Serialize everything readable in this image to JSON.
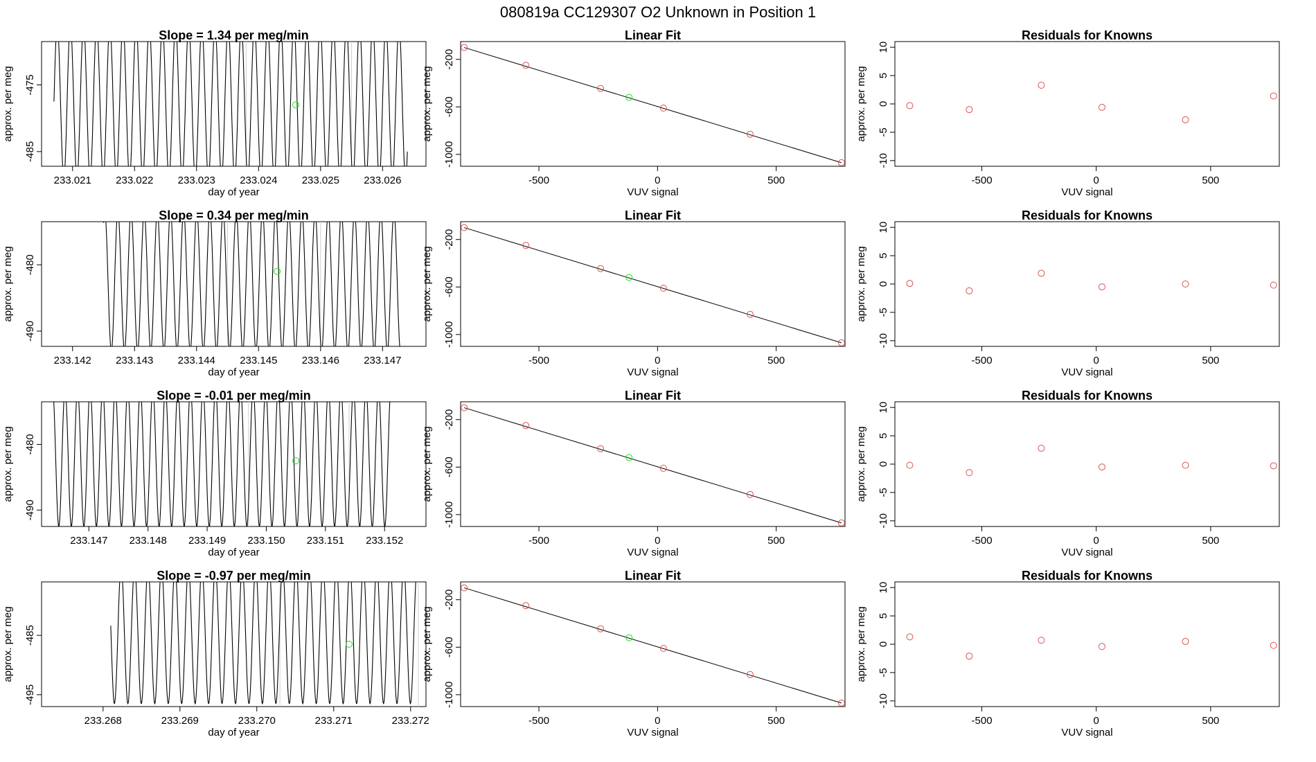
{
  "figure": {
    "title": "080819a      CC129307   O2 Unknown in Position  1"
  },
  "colors": {
    "standard_point": "#d9534f",
    "unknown_point": "#22dd22",
    "line": "#000000",
    "gridline": "#cfcfcf"
  },
  "rows": [
    {
      "slope": {
        "title": "Slope =  1.34  per meg/min",
        "type": "line",
        "xlabel": "day of year",
        "ylabel": "approx. per meg",
        "xlim": [
          233.0205,
          233.0267
        ],
        "ylim": [
          -487.2,
          -468.5
        ],
        "xticks": [
          "233.021",
          "233.022",
          "233.023",
          "233.024",
          "233.025",
          "233.026"
        ],
        "yticks": [
          "-475",
          "-485"
        ],
        "vlines": [
          233.0238,
          233.0255
        ],
        "series_start": 233.0207,
        "series_end": 233.0264,
        "mean": -477.5,
        "amplitude": 11.5,
        "period": 0.000212,
        "unknown_point": {
          "x": 233.0246,
          "y": -478.0
        }
      },
      "fit": {
        "title": "Linear Fit",
        "type": "scatter",
        "xlabel": "VUV signal",
        "ylabel": "approx. per meg",
        "xlim": [
          -830,
          790
        ],
        "ylim": [
          -1100,
          -50
        ],
        "xticks": [
          "-500",
          "0",
          "500"
        ],
        "yticks": [
          "-200",
          "-600",
          "-1000"
        ],
        "line": {
          "x": [
            -815,
            775
          ],
          "y": [
            -100,
            -1070
          ]
        },
        "knowns": {
          "x": [
            -815,
            -555,
            -240,
            25,
            390,
            775
          ],
          "y": [
            -100,
            -250,
            -445,
            -610,
            -830,
            -1070
          ]
        },
        "unknown": {
          "x": -120,
          "y": -520
        }
      },
      "residuals": {
        "title": "Residuals for Knowns",
        "type": "scatter",
        "xlabel": "VUV signal",
        "ylabel": "approx. per meg",
        "xlim": [
          -880,
          800
        ],
        "ylim": [
          -11,
          11
        ],
        "xticks": [
          "-500",
          "0",
          "500"
        ],
        "yticks": [
          "10",
          "5",
          "0",
          "-5",
          "-10"
        ],
        "points": {
          "x": [
            -815,
            -555,
            -240,
            25,
            390,
            775
          ],
          "y": [
            -0.3,
            -1.0,
            3.3,
            -0.6,
            -2.8,
            1.4
          ]
        }
      }
    },
    {
      "slope": {
        "title": "Slope =  0.34  per meg/min",
        "type": "line",
        "xlabel": "day of year",
        "ylabel": "approx. per meg",
        "xlim": [
          233.1415,
          233.1477
        ],
        "ylim": [
          -492.3,
          -473.5
        ],
        "xticks": [
          "233.142",
          "233.143",
          "233.144",
          "233.145",
          "233.146",
          "233.147"
        ],
        "yticks": [
          "-480",
          "-490"
        ],
        "vlines": [
          233.1445,
          233.146
        ],
        "series_start": 233.1425,
        "series_end": 233.1473,
        "mean": -482.5,
        "amplitude": 10.5,
        "period": 0.000212,
        "unknown_point": {
          "x": 233.1453,
          "y": -481.0
        }
      },
      "fit": {
        "title": "Linear Fit",
        "type": "scatter",
        "xlabel": "VUV signal",
        "ylabel": "approx. per meg",
        "xlim": [
          -830,
          790
        ],
        "ylim": [
          -1100,
          -50
        ],
        "xticks": [
          "-500",
          "0",
          "500"
        ],
        "yticks": [
          "-200",
          "-600",
          "-1000"
        ],
        "line": {
          "x": [
            -815,
            775
          ],
          "y": [
            -100,
            -1070
          ]
        },
        "knowns": {
          "x": [
            -815,
            -555,
            -240,
            25,
            390,
            775
          ],
          "y": [
            -100,
            -250,
            -445,
            -610,
            -830,
            -1070
          ]
        },
        "unknown": {
          "x": -120,
          "y": -520
        }
      },
      "residuals": {
        "title": "Residuals for Knowns",
        "type": "scatter",
        "xlabel": "VUV signal",
        "ylabel": "approx. per meg",
        "xlim": [
          -880,
          800
        ],
        "ylim": [
          -11,
          11
        ],
        "xticks": [
          "-500",
          "0",
          "500"
        ],
        "yticks": [
          "10",
          "5",
          "0",
          "-5",
          "-10"
        ],
        "points": {
          "x": [
            -815,
            -555,
            -240,
            25,
            390,
            775
          ],
          "y": [
            0.1,
            -1.2,
            1.9,
            -0.5,
            0.0,
            -0.2
          ]
        }
      }
    },
    {
      "slope": {
        "title": "Slope =  -0.01  per meg/min",
        "type": "line",
        "xlabel": "day of year",
        "ylabel": "approx. per meg",
        "xlim": [
          233.1462,
          233.1527
        ],
        "ylim": [
          -492.5,
          -473.5
        ],
        "xticks": [
          "233.147",
          "233.148",
          "233.149",
          "233.150",
          "233.151",
          "233.152"
        ],
        "yticks": [
          "-480",
          "-490"
        ],
        "vlines": [
          233.1497,
          233.1514
        ],
        "series_start": 233.1464,
        "series_end": 233.1521,
        "mean": -482.0,
        "amplitude": 10.5,
        "period": 0.000212,
        "unknown_point": {
          "x": 233.1505,
          "y": -482.5
        }
      },
      "fit": {
        "title": "Linear Fit",
        "type": "scatter",
        "xlabel": "VUV signal",
        "ylabel": "approx. per meg",
        "xlim": [
          -830,
          790
        ],
        "ylim": [
          -1100,
          -50
        ],
        "xticks": [
          "-500",
          "0",
          "500"
        ],
        "yticks": [
          "-200",
          "-600",
          "-1000"
        ],
        "line": {
          "x": [
            -815,
            775
          ],
          "y": [
            -100,
            -1070
          ]
        },
        "knowns": {
          "x": [
            -815,
            -555,
            -240,
            25,
            390,
            775
          ],
          "y": [
            -100,
            -250,
            -445,
            -610,
            -830,
            -1070
          ]
        },
        "unknown": {
          "x": -120,
          "y": -520
        }
      },
      "residuals": {
        "title": "Residuals for Knowns",
        "type": "scatter",
        "xlabel": "VUV signal",
        "ylabel": "approx. per meg",
        "xlim": [
          -880,
          800
        ],
        "ylim": [
          -11,
          11
        ],
        "points": {
          "x": [
            -815,
            -555,
            -240,
            25,
            390,
            775
          ],
          "y": [
            -0.2,
            -1.5,
            2.8,
            -0.5,
            -0.2,
            -0.3
          ]
        },
        "xticks": [
          "-500",
          "0",
          "500"
        ],
        "yticks": [
          "10",
          "5",
          "0",
          "-5",
          "-10"
        ]
      }
    },
    {
      "slope": {
        "title": "Slope =  -0.97  per meg/min",
        "type": "line",
        "xlabel": "day of year",
        "ylabel": "approx. per meg",
        "xlim": [
          233.2672,
          233.2722
        ],
        "ylim": [
          -497.0,
          -476.0
        ],
        "xticks": [
          "233.268",
          "233.269",
          "233.270",
          "233.271",
          "233.272"
        ],
        "yticks": [
          "-485",
          "-495"
        ],
        "vlines": [
          233.2703,
          233.2721
        ],
        "series_start": 233.2681,
        "series_end": 233.2721,
        "mean": -485.0,
        "amplitude": 11.5,
        "period": 0.000175,
        "unknown_point": {
          "x": 233.2712,
          "y": -486.5
        }
      },
      "fit": {
        "title": "Linear Fit",
        "type": "scatter",
        "xlabel": "VUV signal",
        "ylabel": "approx. per meg",
        "xlim": [
          -830,
          790
        ],
        "ylim": [
          -1100,
          -50
        ],
        "xticks": [
          "-500",
          "0",
          "500"
        ],
        "yticks": [
          "-200",
          "-600",
          "-1000"
        ],
        "line": {
          "x": [
            -815,
            775
          ],
          "y": [
            -100,
            -1070
          ]
        },
        "knowns": {
          "x": [
            -815,
            -555,
            -240,
            25,
            390,
            775
          ],
          "y": [
            -100,
            -250,
            -445,
            -610,
            -830,
            -1070
          ]
        },
        "unknown": {
          "x": -120,
          "y": -520
        }
      },
      "residuals": {
        "title": "Residuals for Knowns",
        "type": "scatter",
        "xlabel": "VUV signal",
        "ylabel": "approx. per meg",
        "xlim": [
          -880,
          800
        ],
        "ylim": [
          -11,
          11
        ],
        "xticks": [
          "-500",
          "0",
          "500"
        ],
        "yticks": [
          "10",
          "5",
          "0",
          "-5",
          "-10"
        ],
        "points": {
          "x": [
            -815,
            -555,
            -240,
            25,
            390,
            775
          ],
          "y": [
            1.3,
            -2.1,
            0.7,
            -0.4,
            0.5,
            -0.2
          ]
        }
      }
    }
  ]
}
